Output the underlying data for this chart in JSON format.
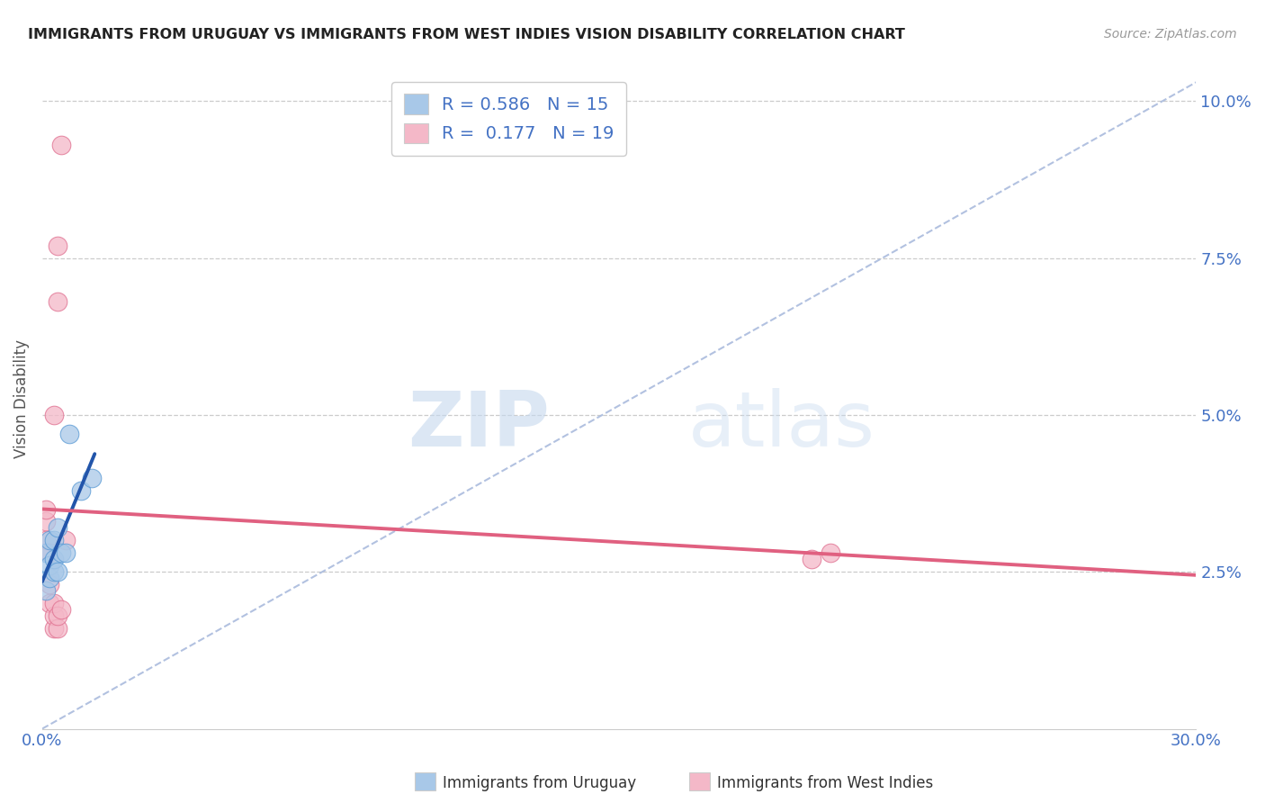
{
  "title": "IMMIGRANTS FROM URUGUAY VS IMMIGRANTS FROM WEST INDIES VISION DISABILITY CORRELATION CHART",
  "source": "Source: ZipAtlas.com",
  "ylabel": "Vision Disability",
  "xlim": [
    0.0,
    0.3
  ],
  "ylim": [
    0.0,
    0.105
  ],
  "yticks": [
    0.025,
    0.05,
    0.075,
    0.1
  ],
  "ytick_labels": [
    "2.5%",
    "5.0%",
    "7.5%",
    "10.0%"
  ],
  "xticks": [
    0.0,
    0.06,
    0.12,
    0.18,
    0.24,
    0.3
  ],
  "xtick_labels": [
    "0.0%",
    "",
    "",
    "",
    "",
    "30.0%"
  ],
  "title_color": "#222222",
  "source_color": "#999999",
  "background_color": "#ffffff",
  "watermark_zip": "ZIP",
  "watermark_atlas": "atlas",
  "grid_color": "#cccccc",
  "series_uruguay": {
    "name": "Immigrants from Uruguay",
    "color": "#a8c8e8",
    "border_color": "#5b9bd5",
    "R": 0.586,
    "N": 15,
    "x": [
      0.001,
      0.001,
      0.002,
      0.002,
      0.002,
      0.003,
      0.003,
      0.003,
      0.004,
      0.004,
      0.005,
      0.006,
      0.007,
      0.01,
      0.013
    ],
    "y": [
      0.022,
      0.028,
      0.024,
      0.026,
      0.03,
      0.025,
      0.027,
      0.03,
      0.025,
      0.032,
      0.028,
      0.028,
      0.047,
      0.038,
      0.04
    ]
  },
  "series_west_indies": {
    "name": "Immigrants from West Indies",
    "color": "#f4b8c8",
    "border_color": "#e07090",
    "R": 0.177,
    "N": 19,
    "x": [
      0.001,
      0.001,
      0.001,
      0.002,
      0.002,
      0.002,
      0.003,
      0.003,
      0.003,
      0.003,
      0.004,
      0.004,
      0.004,
      0.004,
      0.005,
      0.005,
      0.006,
      0.2,
      0.205
    ],
    "y": [
      0.03,
      0.033,
      0.035,
      0.02,
      0.023,
      0.028,
      0.016,
      0.018,
      0.02,
      0.05,
      0.016,
      0.018,
      0.068,
      0.077,
      0.019,
      0.093,
      0.03,
      0.027,
      0.028
    ]
  },
  "trendline_uruguay_color": "#2255aa",
  "trendline_west_indies_color": "#e06080",
  "refline_color": "#aabbdd",
  "legend_box_color_uru": "#a8c8e8",
  "legend_box_color_wi": "#f4b8c8",
  "legend_box_border": "#cccccc"
}
